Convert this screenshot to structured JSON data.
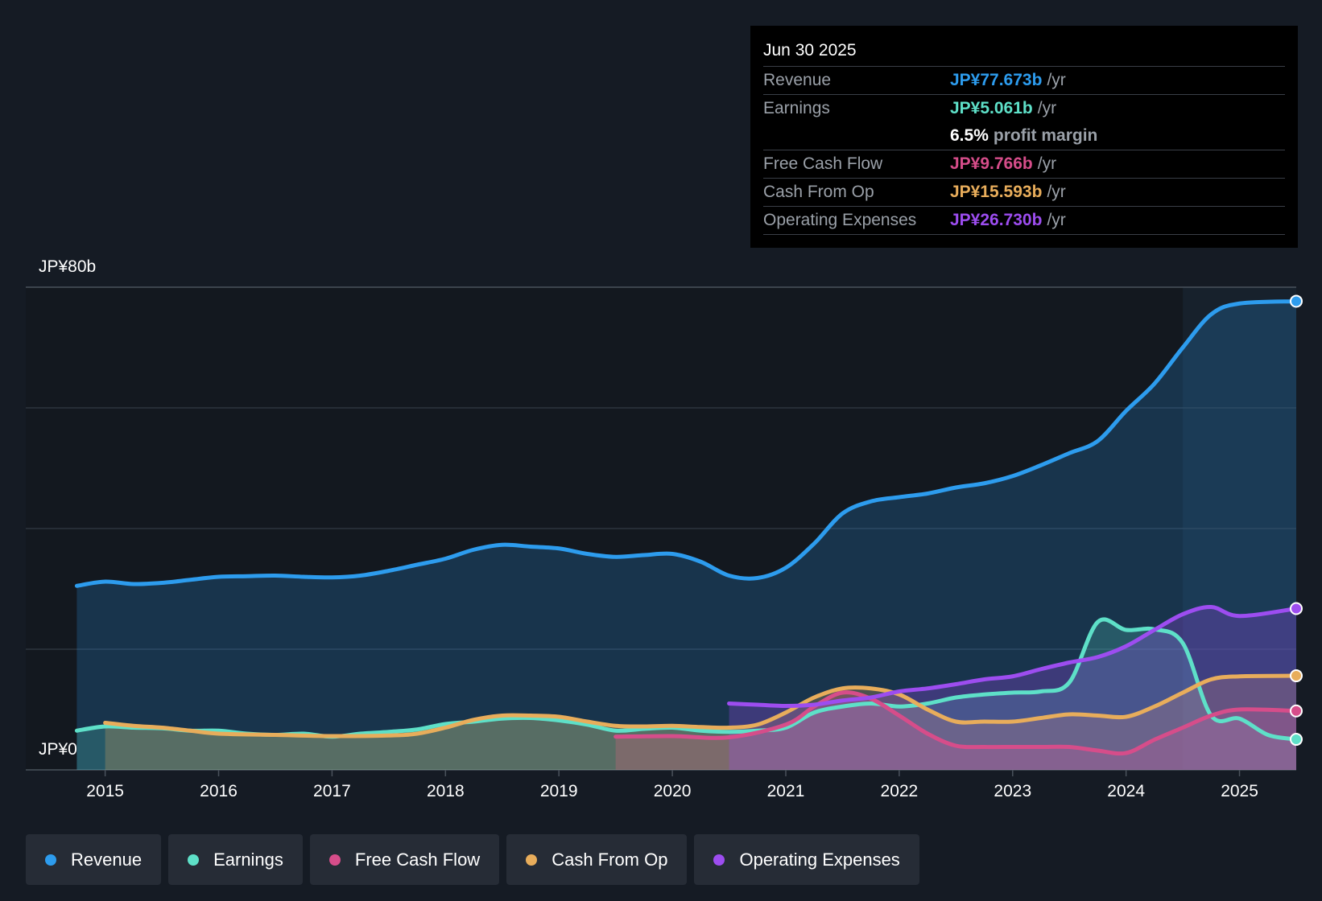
{
  "chart_data": {
    "type": "area",
    "currency": "JP¥",
    "ylim": [
      0,
      80
    ],
    "y_tick_labels": {
      "top": "JP¥80b",
      "bottom": "JP¥0"
    },
    "x_tick_labels": [
      "2015",
      "2016",
      "2017",
      "2018",
      "2019",
      "2020",
      "2021",
      "2022",
      "2023",
      "2024",
      "2025"
    ],
    "x_tick_values": [
      2015,
      2016,
      2017,
      2018,
      2019,
      2020,
      2021,
      2022,
      2023,
      2024,
      2025
    ],
    "xlim": [
      2014.3,
      2025.5
    ],
    "highlight_start": 2024.5,
    "series": [
      {
        "name": "Revenue",
        "key": "revenue",
        "color": "#2d9cee",
        "points": [
          [
            2014.75,
            30.5
          ],
          [
            2015.0,
            31.2
          ],
          [
            2015.25,
            30.8
          ],
          [
            2015.5,
            31.0
          ],
          [
            2015.75,
            31.5
          ],
          [
            2016.0,
            32.0
          ],
          [
            2016.25,
            32.1
          ],
          [
            2016.5,
            32.2
          ],
          [
            2016.75,
            32.0
          ],
          [
            2017.0,
            31.9
          ],
          [
            2017.25,
            32.2
          ],
          [
            2017.5,
            33.0
          ],
          [
            2017.75,
            34.0
          ],
          [
            2018.0,
            35.0
          ],
          [
            2018.25,
            36.5
          ],
          [
            2018.5,
            37.3
          ],
          [
            2018.75,
            37.0
          ],
          [
            2019.0,
            36.7
          ],
          [
            2019.25,
            35.8
          ],
          [
            2019.5,
            35.3
          ],
          [
            2019.75,
            35.6
          ],
          [
            2020.0,
            35.8
          ],
          [
            2020.25,
            34.5
          ],
          [
            2020.5,
            32.2
          ],
          [
            2020.75,
            31.8
          ],
          [
            2021.0,
            33.5
          ],
          [
            2021.25,
            37.5
          ],
          [
            2021.5,
            42.5
          ],
          [
            2021.75,
            44.5
          ],
          [
            2022.0,
            45.2
          ],
          [
            2022.25,
            45.8
          ],
          [
            2022.5,
            46.8
          ],
          [
            2022.75,
            47.5
          ],
          [
            2023.0,
            48.7
          ],
          [
            2023.25,
            50.5
          ],
          [
            2023.5,
            52.5
          ],
          [
            2023.75,
            54.5
          ],
          [
            2024.0,
            59.5
          ],
          [
            2024.25,
            64.0
          ],
          [
            2024.5,
            70.0
          ],
          [
            2024.75,
            75.5
          ],
          [
            2025.0,
            77.3
          ],
          [
            2025.5,
            77.673
          ]
        ]
      },
      {
        "name": "Earnings",
        "key": "earnings",
        "color": "#5ee0c8",
        "points": [
          [
            2014.75,
            6.5
          ],
          [
            2015.0,
            7.2
          ],
          [
            2015.25,
            7.0
          ],
          [
            2015.5,
            6.9
          ],
          [
            2015.75,
            6.5
          ],
          [
            2016.0,
            6.5
          ],
          [
            2016.25,
            6.0
          ],
          [
            2016.5,
            5.8
          ],
          [
            2016.75,
            6.0
          ],
          [
            2017.0,
            5.5
          ],
          [
            2017.25,
            6.0
          ],
          [
            2017.5,
            6.3
          ],
          [
            2017.75,
            6.7
          ],
          [
            2018.0,
            7.6
          ],
          [
            2018.25,
            8.0
          ],
          [
            2018.5,
            8.5
          ],
          [
            2018.75,
            8.6
          ],
          [
            2019.0,
            8.2
          ],
          [
            2019.25,
            7.5
          ],
          [
            2019.5,
            6.5
          ],
          [
            2019.75,
            6.8
          ],
          [
            2020.0,
            7.0
          ],
          [
            2020.25,
            6.5
          ],
          [
            2020.5,
            6.3
          ],
          [
            2020.75,
            6.5
          ],
          [
            2021.0,
            7.0
          ],
          [
            2021.25,
            9.5
          ],
          [
            2021.5,
            10.5
          ],
          [
            2021.75,
            11.0
          ],
          [
            2022.0,
            10.5
          ],
          [
            2022.25,
            11.0
          ],
          [
            2022.5,
            12.0
          ],
          [
            2022.75,
            12.5
          ],
          [
            2023.0,
            12.8
          ],
          [
            2023.25,
            13.0
          ],
          [
            2023.5,
            14.5
          ],
          [
            2023.75,
            24.5
          ],
          [
            2024.0,
            23.2
          ],
          [
            2024.25,
            23.3
          ],
          [
            2024.5,
            21.0
          ],
          [
            2024.75,
            9.0
          ],
          [
            2025.0,
            8.5
          ],
          [
            2025.25,
            5.8
          ],
          [
            2025.5,
            5.061
          ]
        ]
      },
      {
        "name": "Free Cash Flow",
        "key": "fcf",
        "color": "#d64d8a",
        "points": [
          [
            2019.5,
            5.5
          ],
          [
            2020.0,
            5.6
          ],
          [
            2020.5,
            5.4
          ],
          [
            2021.0,
            7.5
          ],
          [
            2021.25,
            10.5
          ],
          [
            2021.5,
            12.8
          ],
          [
            2021.75,
            11.8
          ],
          [
            2022.0,
            9.0
          ],
          [
            2022.25,
            6.0
          ],
          [
            2022.5,
            4.0
          ],
          [
            2022.75,
            3.8
          ],
          [
            2023.0,
            3.8
          ],
          [
            2023.25,
            3.8
          ],
          [
            2023.5,
            3.8
          ],
          [
            2023.75,
            3.2
          ],
          [
            2024.0,
            2.8
          ],
          [
            2024.25,
            5.0
          ],
          [
            2024.5,
            7.0
          ],
          [
            2024.75,
            9.0
          ],
          [
            2025.0,
            10.0
          ],
          [
            2025.5,
            9.766
          ]
        ]
      },
      {
        "name": "Cash From Op",
        "key": "cfo",
        "color": "#e8ad5b",
        "points": [
          [
            2015.0,
            7.8
          ],
          [
            2015.25,
            7.3
          ],
          [
            2015.5,
            7.0
          ],
          [
            2015.75,
            6.5
          ],
          [
            2016.0,
            6.0
          ],
          [
            2016.5,
            5.8
          ],
          [
            2017.0,
            5.6
          ],
          [
            2017.5,
            5.7
          ],
          [
            2017.75,
            6.0
          ],
          [
            2018.0,
            7.0
          ],
          [
            2018.25,
            8.3
          ],
          [
            2018.5,
            9.0
          ],
          [
            2018.75,
            9.0
          ],
          [
            2019.0,
            8.8
          ],
          [
            2019.25,
            8.0
          ],
          [
            2019.5,
            7.3
          ],
          [
            2019.75,
            7.2
          ],
          [
            2020.0,
            7.3
          ],
          [
            2020.25,
            7.1
          ],
          [
            2020.5,
            7.0
          ],
          [
            2020.75,
            7.5
          ],
          [
            2021.0,
            9.5
          ],
          [
            2021.25,
            12.0
          ],
          [
            2021.5,
            13.5
          ],
          [
            2021.75,
            13.5
          ],
          [
            2022.0,
            12.5
          ],
          [
            2022.25,
            10.0
          ],
          [
            2022.5,
            8.0
          ],
          [
            2022.75,
            8.0
          ],
          [
            2023.0,
            8.0
          ],
          [
            2023.25,
            8.6
          ],
          [
            2023.5,
            9.2
          ],
          [
            2023.75,
            9.0
          ],
          [
            2024.0,
            8.8
          ],
          [
            2024.25,
            10.5
          ],
          [
            2024.5,
            12.8
          ],
          [
            2024.75,
            15.0
          ],
          [
            2025.0,
            15.5
          ],
          [
            2025.5,
            15.593
          ]
        ]
      },
      {
        "name": "Operating Expenses",
        "key": "opex",
        "color": "#9d4df0",
        "points": [
          [
            2020.5,
            11.0
          ],
          [
            2020.75,
            10.8
          ],
          [
            2021.0,
            10.6
          ],
          [
            2021.25,
            10.8
          ],
          [
            2021.5,
            11.5
          ],
          [
            2021.75,
            12.0
          ],
          [
            2022.0,
            13.0
          ],
          [
            2022.25,
            13.5
          ],
          [
            2022.5,
            14.2
          ],
          [
            2022.75,
            15.0
          ],
          [
            2023.0,
            15.5
          ],
          [
            2023.25,
            16.7
          ],
          [
            2023.5,
            17.8
          ],
          [
            2023.75,
            18.7
          ],
          [
            2024.0,
            20.5
          ],
          [
            2024.25,
            23.2
          ],
          [
            2024.5,
            25.8
          ],
          [
            2024.75,
            27.0
          ],
          [
            2025.0,
            25.5
          ],
          [
            2025.5,
            26.73
          ]
        ]
      }
    ]
  },
  "tooltip": {
    "date": "Jun 30 2025",
    "revenue_label": "Revenue",
    "revenue_value": "JP¥77.673b",
    "revenue_unit": "/yr",
    "earnings_label": "Earnings",
    "earnings_value": "JP¥5.061b",
    "earnings_unit": "/yr",
    "margin_value": "6.5%",
    "margin_label": "profit margin",
    "fcf_label": "Free Cash Flow",
    "fcf_value": "JP¥9.766b",
    "fcf_unit": "/yr",
    "cfo_label": "Cash From Op",
    "cfo_value": "JP¥15.593b",
    "cfo_unit": "/yr",
    "opex_label": "Operating Expenses",
    "opex_value": "JP¥26.730b",
    "opex_unit": "/yr"
  },
  "legend": [
    {
      "label": "Revenue",
      "color": "#2d9cee"
    },
    {
      "label": "Earnings",
      "color": "#5ee0c8"
    },
    {
      "label": "Free Cash Flow",
      "color": "#d64d8a"
    },
    {
      "label": "Cash From Op",
      "color": "#e8ad5b"
    },
    {
      "label": "Operating Expenses",
      "color": "#9d4df0"
    }
  ]
}
